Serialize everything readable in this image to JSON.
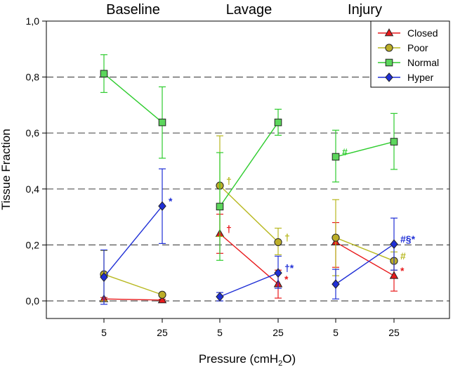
{
  "chart_data": {
    "type": "line",
    "ylabel": "Tissue Fraction",
    "xlabel": "Pressure (cmH",
    "xlabel_sub": "2",
    "xlabel_end": "O)",
    "ylim": [
      -0.06,
      1.0
    ],
    "yticks": [
      "0,0",
      "0,2",
      "0,4",
      "0,6",
      "0,8",
      "1,0"
    ],
    "ytick_values": [
      0.0,
      0.2,
      0.4,
      0.6,
      0.8,
      1.0
    ],
    "grid_dashed_at": [
      0.0,
      0.2,
      0.4,
      0.6,
      0.8
    ],
    "groups": [
      "Baseline",
      "Lavage",
      "Injury"
    ],
    "x_positions": [
      1,
      2,
      3,
      4,
      5,
      6
    ],
    "x_tick_labels": [
      "5",
      "25",
      "5",
      "25",
      "5",
      "25"
    ],
    "legend_position": "top-right",
    "series": [
      {
        "name": "Closed",
        "color": "#e8191b",
        "marker": "triangle-up",
        "fill": "#e8191b",
        "segments": [
          [
            0,
            1
          ],
          [
            2,
            3
          ],
          [
            4,
            5
          ]
        ],
        "values": [
          0.007,
          0.003,
          0.24,
          0.06,
          0.21,
          0.09
        ],
        "err_low": [
          0.0,
          0.0,
          0.17,
          0.01,
          0.12,
          0.035
        ],
        "err_high": [
          0.012,
          0.006,
          0.31,
          0.11,
          0.28,
          0.145
        ]
      },
      {
        "name": "Poor",
        "color": "#b8b820",
        "marker": "circle",
        "fill": "#bcae28",
        "segments": [
          [
            0,
            1
          ],
          [
            2,
            3
          ],
          [
            4,
            5
          ]
        ],
        "values": [
          0.095,
          0.022,
          0.412,
          0.21,
          0.226,
          0.143
        ],
        "err_low": [
          0.0,
          0.018,
          0.23,
          0.165,
          0.09,
          0.11
        ],
        "err_high": [
          0.18,
          0.026,
          0.59,
          0.26,
          0.362,
          0.175
        ]
      },
      {
        "name": "Normal",
        "color": "#2ecc2e",
        "marker": "square",
        "fill": "#5cd65c",
        "segments": [
          [
            0,
            1
          ],
          [
            2,
            3
          ],
          [
            4,
            5
          ]
        ],
        "values": [
          0.812,
          0.638,
          0.337,
          0.638,
          0.515,
          0.569
        ],
        "err_low": [
          0.745,
          0.51,
          0.145,
          0.592,
          0.425,
          0.47
        ],
        "err_high": [
          0.88,
          0.765,
          0.53,
          0.685,
          0.61,
          0.67
        ]
      },
      {
        "name": "Hyper",
        "color": "#1f2fd6",
        "marker": "diamond",
        "fill": "#1f2fd6",
        "segments": [
          [
            0,
            1
          ],
          [
            2,
            3
          ],
          [
            4,
            5
          ]
        ],
        "values": [
          0.085,
          0.339,
          0.015,
          0.1,
          0.06,
          0.203
        ],
        "err_low": [
          -0.012,
          0.205,
          0.0,
          0.045,
          0.007,
          0.11
        ],
        "err_high": [
          0.182,
          0.472,
          0.03,
          0.16,
          0.113,
          0.296
        ]
      }
    ],
    "annotations": [
      {
        "text": "*",
        "color": "#1f2fd6",
        "x": 2,
        "y": 0.339
      },
      {
        "text": "†",
        "color": "#b8b820",
        "x": 3,
        "y": 0.412
      },
      {
        "text": "†",
        "color": "#e8191b",
        "x": 3,
        "y": 0.24
      },
      {
        "text": "†",
        "color": "#b8b820",
        "x": 4,
        "y": 0.21
      },
      {
        "text": "†*",
        "color": "#1f2fd6",
        "x": 4,
        "y": 0.1
      },
      {
        "text": "*",
        "color": "#e8191b",
        "x": 4,
        "y": 0.06
      },
      {
        "text": "#",
        "color": "#2ecc2e",
        "x": 5,
        "y": 0.515
      },
      {
        "text": "#§*",
        "color": "#1f2fd6",
        "x": 6,
        "y": 0.203
      },
      {
        "text": "#",
        "color": "#b8b820",
        "x": 6,
        "y": 0.143
      },
      {
        "text": "*",
        "color": "#e8191b",
        "x": 6,
        "y": 0.09
      }
    ]
  }
}
